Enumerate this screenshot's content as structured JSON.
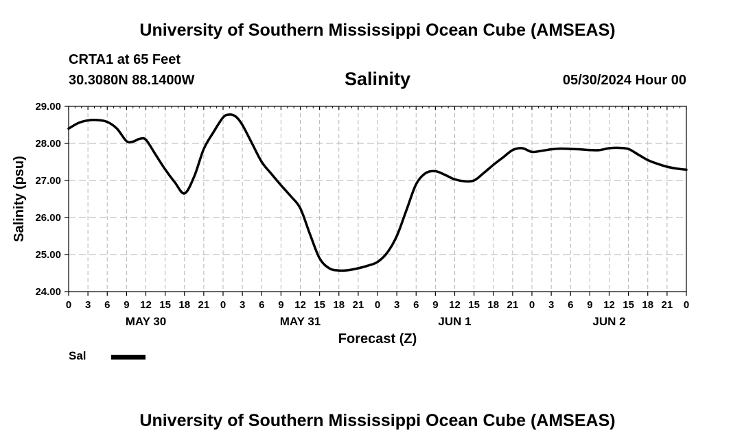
{
  "header": {
    "title": "University of Southern Mississippi Ocean Cube (AMSEAS)",
    "station": "CRTA1 at 65 Feet",
    "coordinates": "30.3080N  88.1400W",
    "issue_time": "05/30/2024 Hour 00"
  },
  "footer": {
    "title": "University of Southern Mississippi Ocean Cube (AMSEAS)"
  },
  "chart_data": {
    "type": "line",
    "title": "Salinity",
    "xlabel": "Forecast (Z)",
    "ylabel": "Salinity (psu)",
    "xlim": [
      0,
      96
    ],
    "ylim": [
      24,
      29
    ],
    "yticks": [
      "24.00",
      "25.00",
      "26.00",
      "27.00",
      "28.00",
      "29.00"
    ],
    "xtick_labels": [
      "0",
      "3",
      "6",
      "9",
      "12",
      "15",
      "18",
      "21",
      "0",
      "3",
      "6",
      "9",
      "12",
      "15",
      "18",
      "21",
      "0",
      "3",
      "6",
      "9",
      "12",
      "15",
      "18",
      "21",
      "0",
      "3",
      "6",
      "9",
      "12",
      "15",
      "18",
      "21",
      "0"
    ],
    "day_labels": [
      {
        "label": "MAY 30",
        "hour": 12
      },
      {
        "label": "MAY 31",
        "hour": 36
      },
      {
        "label": "JUN 1",
        "hour": 60
      },
      {
        "label": "JUN 2",
        "hour": 84
      }
    ],
    "grid": true,
    "legend": "bottom-left",
    "series": [
      {
        "name": "Sal",
        "color": "#000000",
        "x": [
          0,
          1.5,
          3,
          4.5,
          6,
          7.5,
          9,
          10,
          11,
          12,
          13.5,
          15,
          16.5,
          18,
          19.5,
          21,
          22.5,
          24,
          25,
          26,
          27,
          28.5,
          30,
          31.5,
          33,
          34.5,
          36,
          37.5,
          39,
          40.5,
          42,
          43.5,
          45,
          46.5,
          48,
          49.5,
          51,
          52.5,
          54,
          55.5,
          57,
          58.5,
          60,
          61.5,
          63,
          64.5,
          66,
          67.5,
          69,
          70.5,
          72,
          73.5,
          75,
          76.5,
          78,
          79.5,
          81,
          82.5,
          84,
          85.5,
          87,
          88.5,
          90,
          91.5,
          93,
          94.5,
          96
        ],
        "values": [
          28.4,
          28.55,
          28.62,
          28.63,
          28.58,
          28.4,
          28.06,
          28.05,
          28.12,
          28.1,
          27.7,
          27.3,
          26.95,
          26.65,
          27.1,
          27.85,
          28.3,
          28.7,
          28.78,
          28.72,
          28.5,
          28.0,
          27.5,
          27.18,
          26.87,
          26.58,
          26.25,
          25.55,
          24.9,
          24.63,
          24.57,
          24.58,
          24.63,
          24.7,
          24.8,
          25.05,
          25.5,
          26.2,
          26.9,
          27.2,
          27.25,
          27.15,
          27.03,
          26.98,
          27.0,
          27.2,
          27.42,
          27.62,
          27.82,
          27.87,
          27.77,
          27.8,
          27.84,
          27.86,
          27.85,
          27.84,
          27.82,
          27.82,
          27.87,
          27.88,
          27.85,
          27.7,
          27.55,
          27.45,
          27.37,
          27.32,
          27.29
        ]
      }
    ]
  }
}
